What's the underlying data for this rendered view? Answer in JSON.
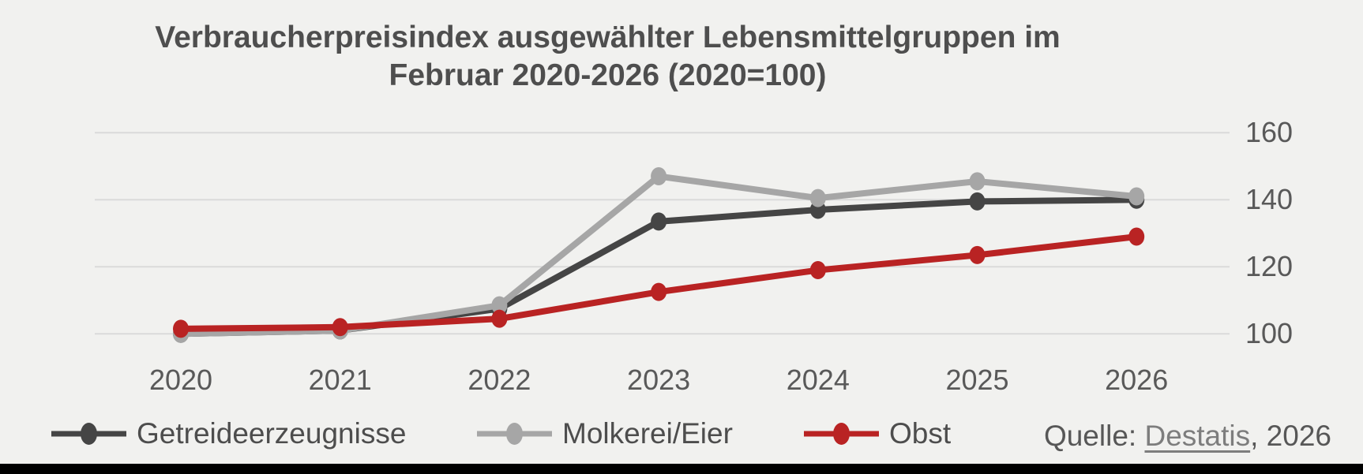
{
  "title": {
    "line1": "Verbraucherpreisindex ausgewählter Lebensmittelgruppen im",
    "line2": "Februar 2020-2026 (2020=100)"
  },
  "source": {
    "prefix": "Quelle: ",
    "link": "Destatis",
    "suffix": ", 2026"
  },
  "colors": {
    "background": "#f1f1ef",
    "gridline": "#dadada",
    "axis_text": "#595959",
    "title_text": "#4e4e4e",
    "legend_text": "#4d4d4d",
    "bottom_bar": "#000000"
  },
  "chart_data": {
    "type": "line",
    "title": "Verbraucherpreisindex ausgewählter Lebensmittelgruppen im Februar 2020-2026 (2020=100)",
    "categories": [
      "2020",
      "2021",
      "2022",
      "2023",
      "2024",
      "2025",
      "2026"
    ],
    "series": [
      {
        "name": "Getreideerzeugnisse",
        "color": "#454545",
        "values": [
          100,
          101,
          107.5,
          133.5,
          137,
          139.5,
          140
        ]
      },
      {
        "name": "Molkerei/Eier",
        "color": "#a6a6a6",
        "values": [
          100,
          101,
          108.5,
          147,
          140.5,
          145.5,
          141
        ]
      },
      {
        "name": "Obst",
        "color": "#b92323",
        "values": [
          101.5,
          102,
          104.5,
          112.5,
          119,
          123.5,
          129
        ]
      }
    ],
    "yticks": [
      100,
      120,
      140,
      160
    ],
    "ylim": [
      100,
      160
    ],
    "xlabel": "",
    "ylabel": "",
    "grid": true,
    "legend_position": "bottom-left"
  }
}
